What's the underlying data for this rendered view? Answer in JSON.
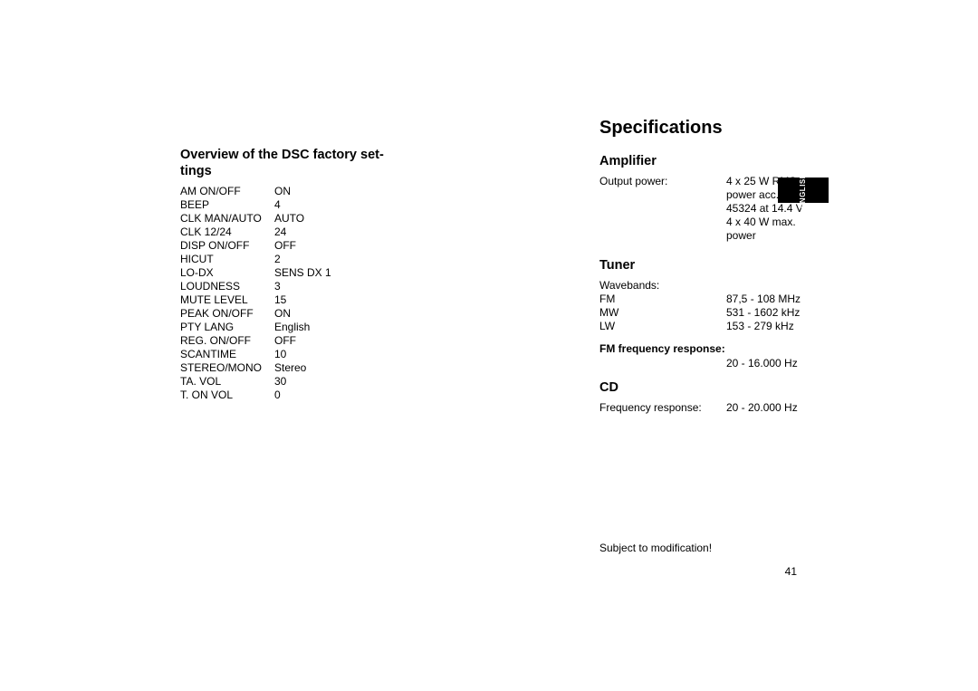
{
  "leftColumn": {
    "heading_line1": "Overview of the DSC factory set-",
    "heading_line2": "tings",
    "rows": [
      {
        "k": "AM ON/OFF",
        "v": "ON"
      },
      {
        "k": "BEEP",
        "v": "4"
      },
      {
        "k": "CLK MAN/AUTO",
        "v": "AUTO"
      },
      {
        "k": "CLK 12/24",
        "v": "24"
      },
      {
        "k": "DISP ON/OFF",
        "v": "OFF"
      },
      {
        "k": "HICUT",
        "v": "2"
      },
      {
        "k": "LO-DX",
        "v": "SENS DX 1"
      },
      {
        "k": "LOUDNESS",
        "v": "3"
      },
      {
        "k": "MUTE LEVEL",
        "v": "15"
      },
      {
        "k": "PEAK ON/OFF",
        "v": "ON"
      },
      {
        "k": "PTY LANG",
        "v": "English"
      },
      {
        "k": "REG. ON/OFF",
        "v": "OFF"
      },
      {
        "k": "SCANTIME",
        "v": "10"
      },
      {
        "k": "STEREO/MONO",
        "v": "Stereo"
      },
      {
        "k": "TA. VOL",
        "v": "30"
      },
      {
        "k": "T. ON VOL",
        "v": "0"
      }
    ]
  },
  "rightColumn": {
    "title": "Specifications",
    "amplifier": {
      "heading": "Amplifier",
      "rows": [
        {
          "k": "Output power:",
          "v": "4 x 25 W  RMS"
        },
        {
          "k": "",
          "v": "power acc. to DIN"
        },
        {
          "k": "",
          "v": "45324 at 14.4 V"
        },
        {
          "k": "",
          "v": "4 x 40 W max."
        },
        {
          "k": "",
          "v": "power"
        }
      ]
    },
    "tuner": {
      "heading": "Tuner",
      "rows": [
        {
          "k": "Wavebands:",
          "v": ""
        },
        {
          "k": "FM",
          "v": "87,5 - 108 MHz"
        },
        {
          "k": "MW",
          "v": "531 - 1602 kHz"
        },
        {
          "k": "LW",
          "v": "153 - 279 kHz"
        }
      ],
      "sub_heading": "FM frequency response:",
      "sub_rows": [
        {
          "k": "",
          "v": "20 - 16.000 Hz"
        }
      ]
    },
    "cd": {
      "heading": "CD",
      "rows": [
        {
          "k": "Frequency response:",
          "v": "20 - 20.000 Hz"
        }
      ]
    }
  },
  "note": "Subject to modification!",
  "pageNumber": "41",
  "langTab": "ENGLISH"
}
